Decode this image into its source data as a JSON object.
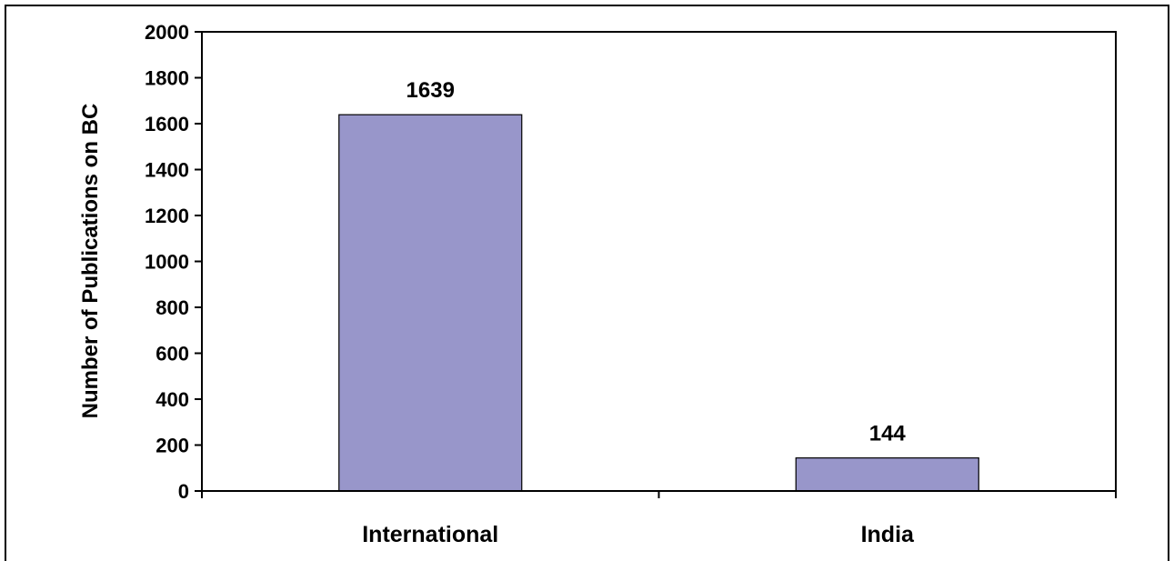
{
  "chart_data": {
    "type": "bar",
    "categories": [
      "International",
      "India"
    ],
    "values": [
      1639,
      144
    ],
    "data_labels": [
      "1639",
      "144"
    ],
    "title": "",
    "xlabel": "",
    "ylabel": "Number of Publications on BC",
    "ylim": [
      0,
      2000
    ],
    "yticks": [
      "0",
      "200",
      "400",
      "600",
      "800",
      "1000",
      "1200",
      "1400",
      "1600",
      "1800",
      "2000"
    ],
    "grid": false,
    "legend": "none",
    "bar_color": "#9896ca",
    "bar_edge_color": "#000000"
  }
}
